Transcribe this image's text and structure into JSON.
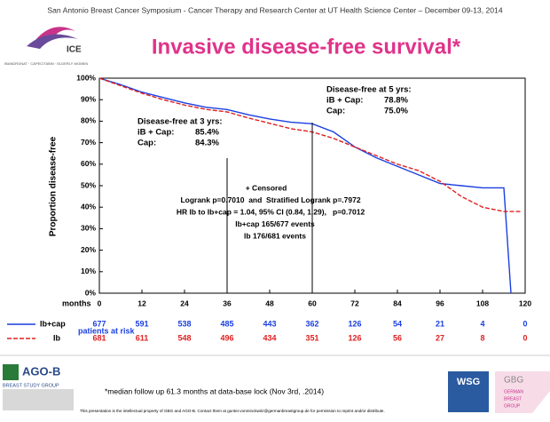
{
  "header": "San Antonio Breast Cancer Symposium - Cancer Therapy and Research Center at UT Health Science Center – December 09-13, 2014",
  "logo": {
    "name": "ICE",
    "tagline": "IBANDRONAT · CAPECITABIN · ELDERLY WOMEN"
  },
  "chart_data": {
    "type": "line",
    "title": "Invasive disease-free survival*",
    "y_label": "Proportion disease-free",
    "x_label": "months",
    "x": [
      0,
      6,
      12,
      18,
      24,
      30,
      36,
      42,
      48,
      54,
      60,
      66,
      72,
      78,
      84,
      90,
      96,
      102,
      108,
      114,
      116,
      119
    ],
    "series": [
      {
        "name": "Ib+cap",
        "color": "#1a3fe0",
        "dash": false,
        "values": [
          100,
          97,
          93.5,
          91,
          88.5,
          86.5,
          85.4,
          83,
          81,
          79.5,
          78.8,
          75,
          68,
          63,
          59,
          55,
          51,
          50,
          49,
          49,
          0,
          null
        ],
        "at_risk": [
          677,
          591,
          538,
          485,
          443,
          362,
          126,
          54,
          21,
          4,
          0
        ]
      },
      {
        "name": "Ib",
        "color": "#e02020",
        "dash": true,
        "values": [
          100,
          96.5,
          93,
          90,
          87.5,
          85.5,
          84.3,
          81.5,
          79,
          76.5,
          75,
          72,
          68,
          64,
          60,
          57,
          52,
          45,
          40,
          38,
          38,
          38
        ],
        "at_risk": [
          681,
          611,
          548,
          496,
          434,
          351,
          126,
          56,
          27,
          8,
          0
        ]
      }
    ],
    "at_risk_label": "patients at risk",
    "xlim": [
      0,
      120
    ],
    "xticks": [
      0,
      12,
      24,
      36,
      48,
      60,
      72,
      84,
      96,
      108,
      120
    ],
    "ylim": [
      0,
      100
    ],
    "yticks": [
      {
        "value": 0,
        "label": "0%"
      },
      {
        "value": 10,
        "label": "10%"
      },
      {
        "value": 20,
        "label": "20%"
      },
      {
        "value": 30,
        "label": "30%"
      },
      {
        "value": 40,
        "label": "40%"
      },
      {
        "value": 50,
        "label": "50%"
      },
      {
        "value": 60,
        "label": "60%"
      },
      {
        "value": 70,
        "label": "70%"
      },
      {
        "value": 80,
        "label": "80%"
      },
      {
        "value": 90,
        "label": "90%"
      },
      {
        "value": 100,
        "label": "100%"
      }
    ],
    "annotations": [
      {
        "title": "Disease-free at 3 yrs:",
        "rows": [
          [
            "iB + Cap:",
            "85.4%"
          ],
          [
            "Cap:",
            "84.3%"
          ]
        ]
      },
      {
        "title": "Disease-free at 5 yrs:",
        "rows": [
          [
            "iB + Cap:",
            "78.8%"
          ],
          [
            "Cap:",
            "75.0%"
          ]
        ]
      }
    ],
    "stats": [
      "+ Censored",
      "Logrank p=0.7010  and  Stratified Logrank p=.7972",
      "HR Ib to Ib+cap = 1.04, 95% CI (0.84, 1.29),   p=0.7012",
      "Ib+cap 165/677 events",
      "Ib 176/681 events"
    ]
  },
  "footer": {
    "note": "*median follow up 61.3 months at data-base lock (Nov 3rd, .2014)",
    "disclaimer": "This presentation is the intellectual property of GBG and AGO-B. Contact them at gunter.vonminckwitz@germanbreastgroup.de for permission to reprint and/or distribute.",
    "ago": "AGO-B",
    "ago_sub": "BREAST STUDY GROUP",
    "wsg": "WSG",
    "gbg": "GBG",
    "gbg_sub": [
      "GERMAN",
      "BREAST",
      "GROUP"
    ]
  }
}
